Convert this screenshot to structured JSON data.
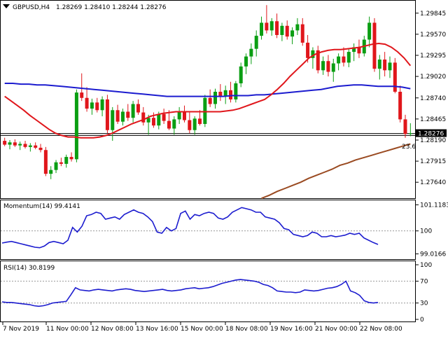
{
  "header": {
    "symbol": "GBPUSD,H4",
    "ohlc": "1.28269 1.28410 1.28244 1.28276"
  },
  "fib_label": "23.6",
  "colors": {
    "bull": "#0a9e12",
    "bear": "#e0161b",
    "ma_red": "#e0161b",
    "ma_blue": "#1c1ccf",
    "ma_brown": "#9a4a21",
    "indicator": "#1c1ccf",
    "price_line": "#000000"
  },
  "chart_data": [
    {
      "type": "candlestick",
      "title": "GBPUSD,H4",
      "y_ticks": [
        "1.29845",
        "1.29570",
        "1.29295",
        "1.29020",
        "1.28740",
        "1.28465",
        "1.28190",
        "1.27915",
        "1.27640"
      ],
      "ylim": [
        1.2745,
        1.2998
      ],
      "current_price": "1.28276",
      "fib_level": 1.2825,
      "ohlc": [
        [
          1.2818,
          1.2822,
          1.2811,
          1.2813
        ],
        [
          1.2813,
          1.2819,
          1.2807,
          1.2816
        ],
        [
          1.2816,
          1.282,
          1.281,
          1.2812
        ],
        [
          1.2812,
          1.2817,
          1.2806,
          1.2814
        ],
        [
          1.2814,
          1.2818,
          1.2808,
          1.281
        ],
        [
          1.281,
          1.2815,
          1.2804,
          1.2812
        ],
        [
          1.2812,
          1.2816,
          1.2807,
          1.2809
        ],
        [
          1.2809,
          1.2814,
          1.2803,
          1.2806
        ],
        [
          1.2806,
          1.281,
          1.2772,
          1.2775
        ],
        [
          1.2775,
          1.2785,
          1.2768,
          1.278
        ],
        [
          1.278,
          1.2793,
          1.2776,
          1.279
        ],
        [
          1.279,
          1.2796,
          1.2785,
          1.2788
        ],
        [
          1.2788,
          1.28,
          1.2783,
          1.2797
        ],
        [
          1.2797,
          1.2803,
          1.2791,
          1.2794
        ],
        [
          1.2794,
          1.2885,
          1.279,
          1.2881
        ],
        [
          1.2881,
          1.2906,
          1.287,
          1.2874
        ],
        [
          1.2874,
          1.2888,
          1.2856,
          1.286
        ],
        [
          1.286,
          1.2873,
          1.2852,
          1.2868
        ],
        [
          1.2868,
          1.2874,
          1.2855,
          1.2858
        ],
        [
          1.2858,
          1.2876,
          1.285,
          1.2872
        ],
        [
          1.2872,
          1.2878,
          1.2828,
          1.2832
        ],
        [
          1.2832,
          1.2862,
          1.2818,
          1.2858
        ],
        [
          1.2858,
          1.2865,
          1.284,
          1.2843
        ],
        [
          1.2843,
          1.286,
          1.2838,
          1.2856
        ],
        [
          1.2856,
          1.2866,
          1.2844,
          1.2848
        ],
        [
          1.2848,
          1.287,
          1.2842,
          1.2866
        ],
        [
          1.2866,
          1.2872,
          1.2852,
          1.2855
        ],
        [
          1.2855,
          1.2862,
          1.2838,
          1.2842
        ],
        [
          1.2842,
          1.2852,
          1.2826,
          1.2848
        ],
        [
          1.2848,
          1.2855,
          1.2835,
          1.2838
        ],
        [
          1.2838,
          1.2856,
          1.2833,
          1.2853
        ],
        [
          1.2853,
          1.286,
          1.284,
          1.2844
        ],
        [
          1.2844,
          1.2858,
          1.2832,
          1.2834
        ],
        [
          1.2834,
          1.285,
          1.2826,
          1.2846
        ],
        [
          1.2846,
          1.2862,
          1.284,
          1.2856
        ],
        [
          1.2856,
          1.2864,
          1.2842,
          1.2845
        ],
        [
          1.2845,
          1.2855,
          1.2828,
          1.2832
        ],
        [
          1.2832,
          1.285,
          1.2826,
          1.2847
        ],
        [
          1.2847,
          1.2858,
          1.2838,
          1.284
        ],
        [
          1.284,
          1.2878,
          1.2836,
          1.2874
        ],
        [
          1.2874,
          1.2885,
          1.2862,
          1.2866
        ],
        [
          1.2866,
          1.2886,
          1.286,
          1.2882
        ],
        [
          1.2882,
          1.2892,
          1.287,
          1.2876
        ],
        [
          1.2876,
          1.289,
          1.2866,
          1.2884
        ],
        [
          1.2884,
          1.2895,
          1.2868,
          1.2872
        ],
        [
          1.2872,
          1.2896,
          1.2868,
          1.2893
        ],
        [
          1.2893,
          1.292,
          1.2888,
          1.2915
        ],
        [
          1.2915,
          1.2932,
          1.2905,
          1.2928
        ],
        [
          1.2928,
          1.2945,
          1.2918,
          1.2938
        ],
        [
          1.2938,
          1.2962,
          1.2928,
          1.2955
        ],
        [
          1.2955,
          1.298,
          1.295,
          1.2972
        ],
        [
          1.2972,
          1.2995,
          1.2958,
          1.2962
        ],
        [
          1.2962,
          1.2978,
          1.2955,
          1.2974
        ],
        [
          1.2974,
          1.2984,
          1.2952,
          1.2956
        ],
        [
          1.2956,
          1.2972,
          1.2948,
          1.2968
        ],
        [
          1.2968,
          1.2975,
          1.295,
          1.2954
        ],
        [
          1.2954,
          1.2966,
          1.2944,
          1.2962
        ],
        [
          1.2962,
          1.2978,
          1.2956,
          1.297
        ],
        [
          1.297,
          1.2978,
          1.2942,
          1.2946
        ],
        [
          1.2946,
          1.2956,
          1.292,
          1.2926
        ],
        [
          1.2926,
          1.294,
          1.2912,
          1.2936
        ],
        [
          1.2936,
          1.2942,
          1.2906,
          1.291
        ],
        [
          1.291,
          1.2928,
          1.2904,
          1.2922
        ],
        [
          1.2922,
          1.293,
          1.2902,
          1.2908
        ],
        [
          1.2908,
          1.2925,
          1.2895,
          1.2919
        ],
        [
          1.2919,
          1.2932,
          1.291,
          1.2928
        ],
        [
          1.2928,
          1.294,
          1.2915,
          1.292
        ],
        [
          1.292,
          1.2938,
          1.2914,
          1.2934
        ],
        [
          1.2934,
          1.2945,
          1.2922,
          1.294
        ],
        [
          1.294,
          1.295,
          1.2926,
          1.2932
        ],
        [
          1.2932,
          1.2955,
          1.2928,
          1.295
        ],
        [
          1.295,
          1.298,
          1.294,
          1.2972
        ],
        [
          1.2972,
          1.2978,
          1.2908,
          1.2912
        ],
        [
          1.2912,
          1.293,
          1.2898,
          1.2924
        ],
        [
          1.2924,
          1.2934,
          1.2902,
          1.291
        ],
        [
          1.291,
          1.2928,
          1.29,
          1.292
        ],
        [
          1.292,
          1.2926,
          1.288,
          1.2882
        ],
        [
          1.2882,
          1.289,
          1.2842,
          1.2846
        ],
        [
          1.2846,
          1.2852,
          1.2822,
          1.2827
        ],
        [
          1.2827,
          1.2841,
          1.2824,
          1.2828
        ]
      ],
      "ma_red": [
        1.2876,
        1.287,
        1.2864,
        1.2858,
        1.2851,
        1.2845,
        1.2839,
        1.2833,
        1.2828,
        1.2825,
        1.2823,
        1.2823,
        1.2822,
        1.2822,
        1.2822,
        1.2823,
        1.2825,
        1.2828,
        1.2832,
        1.2836,
        1.284,
        1.2843,
        1.2846,
        1.285,
        1.2852,
        1.2854,
        1.2855,
        1.2856,
        1.2856,
        1.2856,
        1.2856,
        1.2856,
        1.2856,
        1.2856,
        1.2856,
        1.2857,
        1.2858,
        1.286,
        1.2863,
        1.2866,
        1.2869,
        1.2872,
        1.2878,
        1.2885,
        1.2893,
        1.2902,
        1.291,
        1.2918,
        1.2926,
        1.2931,
        1.2934,
        1.2936,
        1.2937,
        1.2937,
        1.2938,
        1.2939,
        1.294,
        1.2942,
        1.2944,
        1.2945,
        1.2944,
        1.294,
        1.2934,
        1.2926,
        1.2916
      ],
      "ma_blue": [
        1.2893,
        1.2893,
        1.2892,
        1.2892,
        1.2891,
        1.2891,
        1.289,
        1.2889,
        1.2888,
        1.2887,
        1.2886,
        1.2885,
        1.2884,
        1.2883,
        1.2882,
        1.2881,
        1.288,
        1.2879,
        1.2878,
        1.2877,
        1.2876,
        1.2876,
        1.2876,
        1.2876,
        1.2876,
        1.2876,
        1.2876,
        1.2876,
        1.2877,
        1.2877,
        1.2877,
        1.2878,
        1.2878,
        1.2879,
        1.288,
        1.2881,
        1.2882,
        1.2883,
        1.2884,
        1.2885,
        1.2887,
        1.2889,
        1.289,
        1.2891,
        1.2891,
        1.289,
        1.2889,
        1.2889,
        1.2889,
        1.2888,
        1.2886
      ],
      "ma_brown": [
        1.2743,
        1.2747,
        1.2752,
        1.2756,
        1.276,
        1.2764,
        1.2769,
        1.2773,
        1.2777,
        1.2781,
        1.2786,
        1.2789,
        1.2793,
        1.2796,
        1.2799,
        1.2802,
        1.2805,
        1.2808,
        1.2811,
        1.2814
      ]
    },
    {
      "type": "line",
      "title": "Momentum(14) 99.4141",
      "y_ticks": [
        "101.1183",
        "100",
        "99.0166"
      ],
      "ylim": [
        98.85,
        101.25
      ],
      "reference_level": 100,
      "values": [
        99.48,
        99.52,
        99.55,
        99.5,
        99.45,
        99.4,
        99.35,
        99.3,
        99.28,
        99.35,
        99.5,
        99.55,
        99.5,
        99.45,
        99.6,
        100.15,
        99.95,
        100.2,
        100.65,
        100.7,
        100.8,
        100.75,
        100.5,
        100.55,
        100.6,
        100.5,
        100.7,
        100.8,
        100.9,
        100.8,
        100.75,
        100.6,
        100.4,
        99.95,
        99.9,
        100.15,
        100,
        100.1,
        100.75,
        100.85,
        100.5,
        100.7,
        100.65,
        100.75,
        100.8,
        100.75,
        100.55,
        100.5,
        100.6,
        100.8,
        100.9,
        101.0,
        100.95,
        100.9,
        100.8,
        100.8,
        100.6,
        100.55,
        100.5,
        100.35,
        100.1,
        100.05,
        99.85,
        99.8,
        99.75,
        99.8,
        99.95,
        99.9,
        99.75,
        99.75,
        99.8,
        99.75,
        99.78,
        99.82,
        99.9,
        99.85,
        99.9,
        99.7,
        99.6,
        99.5,
        99.42
      ]
    },
    {
      "type": "line",
      "title": "RSI(14) 30.8199",
      "y_ticks": [
        "100",
        "70",
        "30",
        "0"
      ],
      "ylim": [
        0,
        100
      ],
      "levels": [
        70,
        30
      ],
      "values": [
        32,
        31,
        31,
        30,
        29,
        28,
        27,
        25,
        24,
        25,
        27,
        30,
        31,
        32,
        33,
        45,
        58,
        54,
        53,
        52,
        54,
        55,
        54,
        53,
        52,
        54,
        55,
        56,
        55,
        53,
        52,
        51,
        52,
        53,
        54,
        55,
        53,
        52,
        53,
        54,
        56,
        57,
        58,
        56,
        57,
        58,
        60,
        63,
        66,
        68,
        70,
        72,
        73,
        72,
        71,
        70,
        68,
        64,
        62,
        58,
        52,
        51,
        50,
        50,
        49,
        50,
        54,
        53,
        52,
        53,
        55,
        57,
        58,
        60,
        64,
        70,
        52,
        49,
        44,
        34,
        31,
        30,
        31
      ]
    }
  ],
  "x_axis_labels": [
    "7 Nov 2019",
    "11 Nov 00:00",
    "12 Nov 08:00",
    "13 Nov 16:00",
    "15 Nov 00:00",
    "18 Nov 08:00",
    "19 Nov 16:00",
    "21 Nov 00:00",
    "22 Nov 08:00"
  ]
}
